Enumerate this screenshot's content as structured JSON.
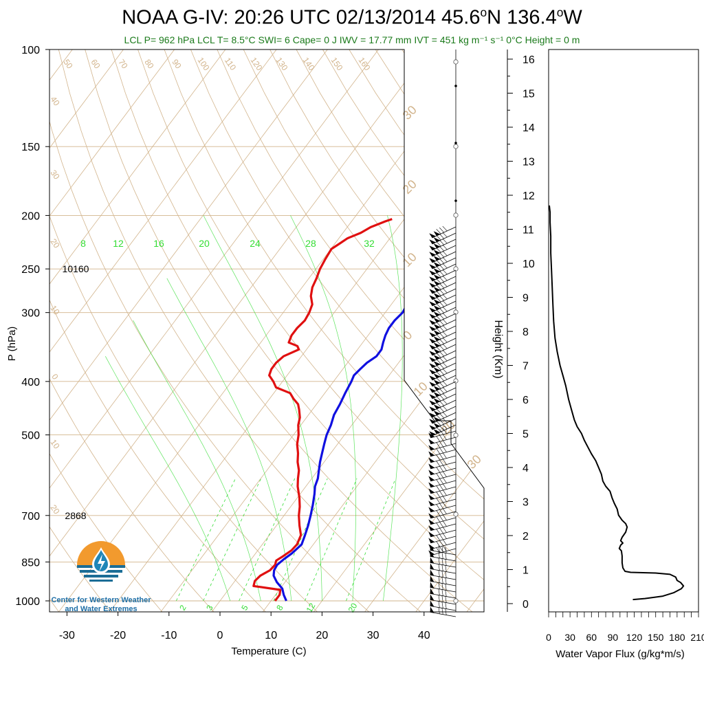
{
  "title": {
    "main": "NOAA G-IV: 20:26 UTC 02/13/2014  45.6",
    "lat_deg": "o",
    "lat_rest": "N 136.4",
    "lon_deg": "o",
    "lon_rest": "W"
  },
  "subtitle": "LCL P= 962 hPa  LCL T= 8.5°C  SWI= 6  Cape= 0 J  IWV = 17.77 mm  IVT = 451 kg m⁻¹ s⁻¹  0°C Height = 0 m",
  "logo": {
    "line1": "Center for Western Weather",
    "line2": "and Water Extremes"
  },
  "colors": {
    "temperature": "#e01010",
    "dewpoint": "#1010e0",
    "isotherm": "#d2b48c",
    "mixing_ratio": "#33dd33",
    "flux": "#000000"
  },
  "chart_data": [
    {
      "type": "line",
      "name": "skew-t",
      "xlabel": "Temperature (C)",
      "ylabel": "P (hPa)",
      "xticks": [
        "-30",
        "-20",
        "-10",
        "0",
        "10",
        "20",
        "30",
        "40"
      ],
      "yticks": [
        "100",
        "150",
        "200",
        "250",
        "300",
        "400",
        "500",
        "700",
        "850",
        "1000"
      ],
      "isotherm_labels": [
        "50",
        "60",
        "70",
        "80",
        "90",
        "100",
        "110",
        "120",
        "130",
        "140",
        "150",
        "160"
      ],
      "dry_adiabat_labels": [
        "40",
        "30",
        "20",
        "10",
        "0",
        "10",
        "20"
      ],
      "moist_adiabat_labels": [
        "30",
        "20",
        "10",
        "0",
        "10",
        "20",
        "30"
      ],
      "mixing_ratio_top": [
        "8",
        "12",
        "16",
        "20",
        "24",
        "28",
        "32"
      ],
      "mixing_ratio_bottom": [
        "2",
        "3",
        "5",
        "8",
        "12",
        "20"
      ],
      "height_annotations": [
        {
          "pressure": 250,
          "label": "10160"
        },
        {
          "pressure": 700,
          "label": "2868"
        }
      ],
      "series": [
        {
          "name": "Temperature",
          "points": [
            [
              1000,
              10.8
            ],
            [
              975,
              10.8
            ],
            [
              955,
              10.2
            ],
            [
              940,
              4.4
            ],
            [
              920,
              3.9
            ],
            [
              900,
              4.2
            ],
            [
              880,
              5.3
            ],
            [
              860,
              5.5
            ],
            [
              845,
              5.1
            ],
            [
              830,
              5.8
            ],
            [
              810,
              6.6
            ],
            [
              790,
              6.8
            ],
            [
              760,
              6.2
            ],
            [
              730,
              4.5
            ],
            [
              700,
              2.9
            ],
            [
              675,
              1.8
            ],
            [
              650,
              0.4
            ],
            [
              620,
              -1.6
            ],
            [
              600,
              -2.7
            ],
            [
              580,
              -3.7
            ],
            [
              560,
              -5.2
            ],
            [
              540,
              -6.4
            ],
            [
              520,
              -7.9
            ],
            [
              500,
              -9.0
            ],
            [
              480,
              -10.5
            ],
            [
              465,
              -11.3
            ],
            [
              450,
              -12.6
            ],
            [
              440,
              -13.6
            ],
            [
              430,
              -15.3
            ],
            [
              420,
              -16.8
            ],
            [
              410,
              -20.4
            ],
            [
              400,
              -21.8
            ],
            [
              390,
              -23.5
            ],
            [
              380,
              -24.0
            ],
            [
              370,
              -24.0
            ],
            [
              360,
              -23.5
            ],
            [
              350,
              -21.5
            ],
            [
              345,
              -22.3
            ],
            [
              340,
              -24.5
            ],
            [
              330,
              -25.0
            ],
            [
              320,
              -25.0
            ],
            [
              310,
              -24.6
            ],
            [
              300,
              -24.9
            ],
            [
              290,
              -25.5
            ],
            [
              280,
              -27.0
            ],
            [
              270,
              -28.0
            ],
            [
              260,
              -28.5
            ],
            [
              250,
              -29.2
            ],
            [
              240,
              -29.6
            ],
            [
              230,
              -29.9
            ],
            [
              225,
              -29.1
            ],
            [
              220,
              -28.3
            ],
            [
              215,
              -26.5
            ],
            [
              210,
              -25.4
            ],
            [
              205,
              -23.4
            ],
            [
              203,
              -22.4
            ]
          ]
        },
        {
          "name": "Dewpoint",
          "points": [
            [
              1000,
              13.0
            ],
            [
              975,
              11.6
            ],
            [
              950,
              10.4
            ],
            [
              925,
              8.4
            ],
            [
              900,
              6.8
            ],
            [
              880,
              6.1
            ],
            [
              860,
              5.9
            ],
            [
              840,
              6.4
            ],
            [
              820,
              7.1
            ],
            [
              790,
              7.7
            ],
            [
              760,
              7.0
            ],
            [
              730,
              6.2
            ],
            [
              700,
              5.2
            ],
            [
              670,
              4.1
            ],
            [
              640,
              2.8
            ],
            [
              620,
              1.8
            ],
            [
              600,
              1.2
            ],
            [
              580,
              0.2
            ],
            [
              560,
              -0.8
            ],
            [
              540,
              -1.7
            ],
            [
              520,
              -2.6
            ],
            [
              500,
              -3.5
            ],
            [
              480,
              -4.1
            ],
            [
              460,
              -5.0
            ],
            [
              440,
              -5.4
            ],
            [
              420,
              -6.0
            ],
            [
              400,
              -6.5
            ],
            [
              390,
              -6.9
            ],
            [
              380,
              -6.6
            ],
            [
              370,
              -6.2
            ],
            [
              360,
              -5.3
            ],
            [
              350,
              -5.3
            ],
            [
              340,
              -6.0
            ],
            [
              330,
              -6.6
            ],
            [
              320,
              -7.0
            ],
            [
              310,
              -7.0
            ],
            [
              300,
              -6.6
            ],
            [
              290,
              -6.9
            ],
            [
              280,
              -7.8
            ],
            [
              270,
              -8.0
            ],
            [
              260,
              -8.6
            ],
            [
              250,
              -9.2
            ],
            [
              240,
              -9.6
            ],
            [
              230,
              -9.2
            ],
            [
              220,
              -8.2
            ],
            [
              215,
              -6.7
            ],
            [
              210,
              -4.6
            ],
            [
              206,
              -3.2
            ],
            [
              204,
              -2.1
            ]
          ]
        }
      ]
    },
    {
      "type": "line",
      "name": "water-vapor-flux",
      "xlabel": "Water Vapor Flux (g/kg*m/s)",
      "ylabel": "Height (Km)",
      "xlim": [
        0,
        210
      ],
      "ylim": [
        0,
        16.2
      ],
      "xticks": [
        "0",
        "30",
        "60",
        "90",
        "120",
        "150",
        "180",
        "210"
      ],
      "yticks": [
        "0",
        "1",
        "2",
        "3",
        "4",
        "5",
        "6",
        "7",
        "8",
        "9",
        "10",
        "11",
        "12",
        "13",
        "14",
        "15",
        "16"
      ],
      "points": [
        [
          118,
          0.12
        ],
        [
          135,
          0.15
        ],
        [
          160,
          0.22
        ],
        [
          175,
          0.32
        ],
        [
          186,
          0.44
        ],
        [
          189,
          0.52
        ],
        [
          185,
          0.62
        ],
        [
          180,
          0.68
        ],
        [
          178,
          0.78
        ],
        [
          170,
          0.86
        ],
        [
          150,
          0.9
        ],
        [
          115,
          0.92
        ],
        [
          107,
          0.95
        ],
        [
          104,
          1.05
        ],
        [
          103,
          1.2
        ],
        [
          103,
          1.4
        ],
        [
          102,
          1.55
        ],
        [
          99,
          1.62
        ],
        [
          101,
          1.72
        ],
        [
          104,
          1.78
        ],
        [
          101,
          1.85
        ],
        [
          103,
          1.95
        ],
        [
          108,
          2.1
        ],
        [
          110,
          2.25
        ],
        [
          108,
          2.35
        ],
        [
          103,
          2.45
        ],
        [
          98,
          2.6
        ],
        [
          96,
          2.78
        ],
        [
          92,
          2.95
        ],
        [
          89,
          3.1
        ],
        [
          86,
          3.3
        ],
        [
          80,
          3.45
        ],
        [
          76,
          3.6
        ],
        [
          74,
          3.8
        ],
        [
          70,
          4.0
        ],
        [
          66,
          4.2
        ],
        [
          60,
          4.4
        ],
        [
          55,
          4.6
        ],
        [
          50,
          4.8
        ],
        [
          46,
          5.0
        ],
        [
          40,
          5.2
        ],
        [
          36,
          5.4
        ],
        [
          32,
          5.7
        ],
        [
          28,
          6.0
        ],
        [
          24,
          6.4
        ],
        [
          20,
          6.7
        ],
        [
          16,
          7.0
        ],
        [
          12,
          7.4
        ],
        [
          9,
          7.8
        ],
        [
          7,
          8.3
        ],
        [
          6,
          8.8
        ],
        [
          5,
          9.3
        ],
        [
          4,
          9.8
        ],
        [
          3,
          10.3
        ],
        [
          3,
          10.8
        ],
        [
          2,
          11.2
        ],
        [
          2,
          11.5
        ],
        [
          1,
          11.7
        ]
      ]
    }
  ]
}
